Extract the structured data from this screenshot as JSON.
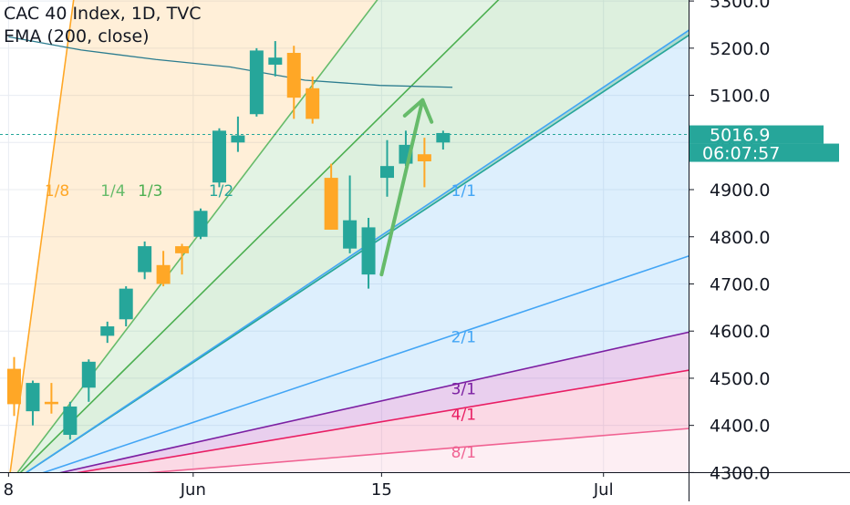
{
  "legend": {
    "symbol": "CAC 40 Index, 1D, TVC",
    "indicator": "EMA (200, close)"
  },
  "colors": {
    "up": "#26a69a",
    "down": "#ffa726",
    "ema": "#2b7c8f",
    "gann_1_8": "#ffa726",
    "gann_1_4": "#66bb6a",
    "gann_1_3": "#4caf50",
    "gann_1_2": "#26a69a",
    "gann_1_1": "#42a5f5",
    "gann_2_1": "#42a5f5",
    "gann_3_1": "#7b1fa2",
    "gann_4_1": "#e91e63",
    "gann_8_1": "#f06292",
    "price_label_bg": "#26a69a",
    "arrow": "#66bb6a"
  },
  "price_label": {
    "price": "5016.9",
    "countdown": "06:07:57"
  },
  "chart_data": {
    "type": "candlestick",
    "y_axis": {
      "min": 4265,
      "max": 5335,
      "ticks": [
        "4300.0",
        "4400.0",
        "4500.0",
        "4600.0",
        "4700.0",
        "4800.0",
        "4900.0",
        "5000.0",
        "5100.0",
        "5200.0",
        "5300.0"
      ]
    },
    "x_axis": {
      "ticks": [
        {
          "label": "8",
          "bar": -0.3
        },
        {
          "label": "Jun",
          "bar": 9.6
        },
        {
          "label": "15",
          "bar": 19.7
        },
        {
          "label": "Jul",
          "bar": 31.6
        }
      ]
    },
    "candles": [
      {
        "o": 4520,
        "h": 4545,
        "l": 4420,
        "c": 4445
      },
      {
        "o": 4430,
        "h": 4495,
        "l": 4400,
        "c": 4490
      },
      {
        "o": 4450,
        "h": 4490,
        "l": 4425,
        "c": 4445
      },
      {
        "o": 4380,
        "h": 4450,
        "l": 4370,
        "c": 4440
      },
      {
        "o": 4480,
        "h": 4540,
        "l": 4450,
        "c": 4535
      },
      {
        "o": 4590,
        "h": 4620,
        "l": 4575,
        "c": 4610
      },
      {
        "o": 4625,
        "h": 4695,
        "l": 4610,
        "c": 4690
      },
      {
        "o": 4725,
        "h": 4790,
        "l": 4710,
        "c": 4780
      },
      {
        "o": 4740,
        "h": 4770,
        "l": 4695,
        "c": 4700
      },
      {
        "o": 4780,
        "h": 4785,
        "l": 4720,
        "c": 4765
      },
      {
        "o": 4800,
        "h": 4860,
        "l": 4795,
        "c": 4855
      },
      {
        "o": 4915,
        "h": 5030,
        "l": 4905,
        "c": 5025
      },
      {
        "o": 5000,
        "h": 5055,
        "l": 4980,
        "c": 5015
      },
      {
        "o": 5060,
        "h": 5200,
        "l": 5055,
        "c": 5195
      },
      {
        "o": 5165,
        "h": 5215,
        "l": 5140,
        "c": 5180
      },
      {
        "o": 5190,
        "h": 5205,
        "l": 5050,
        "c": 5095
      },
      {
        "o": 5115,
        "h": 5140,
        "l": 5040,
        "c": 5050
      },
      {
        "o": 4925,
        "h": 4955,
        "l": 4815,
        "c": 4815
      },
      {
        "o": 4775,
        "h": 4930,
        "l": 4765,
        "c": 4835
      },
      {
        "o": 4720,
        "h": 4840,
        "l": 4690,
        "c": 4820
      },
      {
        "o": 4925,
        "h": 5005,
        "l": 4885,
        "c": 4950
      },
      {
        "o": 4955,
        "h": 5025,
        "l": 4950,
        "c": 4995
      },
      {
        "o": 4975,
        "h": 5010,
        "l": 4905,
        "c": 4960
      },
      {
        "o": 5000,
        "h": 5025,
        "l": 4985,
        "c": 5020
      }
    ],
    "ema": [
      {
        "bar": -0.3,
        "value": 5224
      },
      {
        "bar": 3.6,
        "value": 5196
      },
      {
        "bar": 7.6,
        "value": 5176
      },
      {
        "bar": 11.6,
        "value": 5160
      },
      {
        "bar": 15.6,
        "value": 5132
      },
      {
        "bar": 19.6,
        "value": 5121
      },
      {
        "bar": 23.5,
        "value": 5117
      }
    ],
    "gann_fan": {
      "origin": {
        "bar": -0.3,
        "value": 4275
      },
      "fans": [
        {
          "label": "1/8",
          "target": {
            "bar": 3.3,
            "value": 5335
          },
          "label_at": {
            "bar": 2.3,
            "value": 4900
          }
        },
        {
          "label": "1/4",
          "target": {
            "bar": 20.1,
            "value": 5335
          },
          "label_at": {
            "bar": 5.3,
            "value": 4900
          }
        },
        {
          "label": "1/3",
          "target": {
            "bar": 26.8,
            "value": 5335
          },
          "label_at": {
            "bar": 7.3,
            "value": 4900
          }
        },
        {
          "label": "1/2",
          "target": {
            "bar": 40.3,
            "value": 5335
          },
          "label_at": {
            "bar": 11.1,
            "value": 4900
          }
        },
        {
          "label": "1/1",
          "target": {
            "bar": 33.6,
            "value": 5170
          },
          "label_at": {
            "bar": 24.1,
            "value": 4900
          }
        },
        {
          "label": "2/1",
          "target": {
            "bar": 33.6,
            "value": 4725
          },
          "label_at": {
            "bar": 24.1,
            "value": 4590
          }
        },
        {
          "label": "3/1",
          "target": {
            "bar": 33.6,
            "value": 4575
          },
          "label_at": {
            "bar": 24.1,
            "value": 4480
          }
        },
        {
          "label": "4/1",
          "target": {
            "bar": 33.6,
            "value": 4500
          },
          "label_at": {
            "bar": 24.1,
            "value": 4425
          }
        },
        {
          "label": "8/1",
          "target": {
            "bar": 33.6,
            "value": 4385
          },
          "label_at": {
            "bar": 24.1,
            "value": 4345
          }
        }
      ]
    },
    "arrow": {
      "from": {
        "bar": 19.7,
        "value": 4720
      },
      "to": {
        "bar": 21.9,
        "value": 5090
      }
    }
  }
}
